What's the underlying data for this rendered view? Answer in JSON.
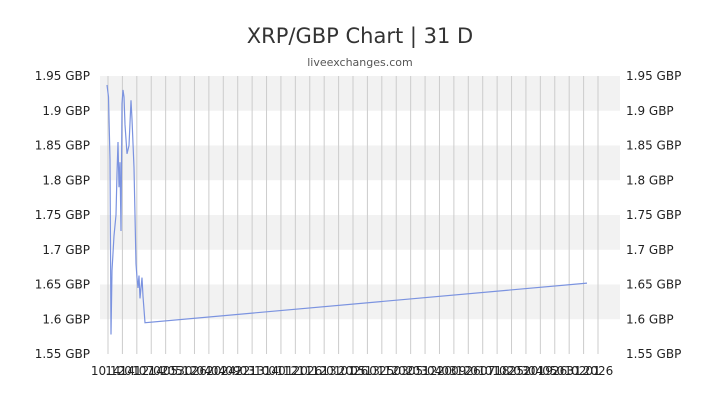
{
  "chart_data": {
    "type": "line",
    "title": "XRP/GBP Chart | 31 D",
    "subtitle": "liveexchanges.com",
    "xlabel": "",
    "ylabel": "",
    "ylim": [
      1.55,
      1.95
    ],
    "y_ticks": [
      "1.95 GBP",
      "1.9 GBP",
      "1.85 GBP",
      "1.8 GBP",
      "1.75 GBP",
      "1.7 GBP",
      "1.65 GBP",
      "1.6 GBP",
      "1.55 GBP"
    ],
    "x_tick_labels": [
      "10.12",
      "14.01",
      "14.07",
      "12.02",
      "14.05",
      "05.12",
      "30.04",
      "26.04",
      "20.09",
      "24.03",
      "22.10",
      "13.01",
      "14.12",
      "01.11",
      "20.12",
      "26.01",
      "13.01",
      "2026",
      "05.01",
      "13.12",
      "25.02",
      "03.03",
      "05.04",
      "12.03",
      "20.12",
      "09.01",
      "26.01",
      "07.02",
      "18.03",
      "25.04",
      "20.05",
      "19.01",
      "26.02",
      "31.01",
      "2026"
    ],
    "grid": true,
    "legend": "none",
    "colors": {
      "line": "#7b93e0",
      "band": "#f2f2f2",
      "gridline": "#cccccc"
    },
    "series": [
      {
        "values": [
          1.937,
          1.92,
          1.89,
          1.83,
          1.578,
          1.67,
          1.72,
          1.75,
          1.81,
          1.855,
          1.79,
          1.826,
          1.727,
          1.91,
          1.93,
          1.92,
          1.88,
          1.838,
          1.85,
          1.915,
          1.888,
          1.818,
          1.68,
          1.66,
          1.645,
          1.663,
          1.63,
          1.66,
          1.633,
          1.595,
          1.652
        ]
      }
    ]
  }
}
